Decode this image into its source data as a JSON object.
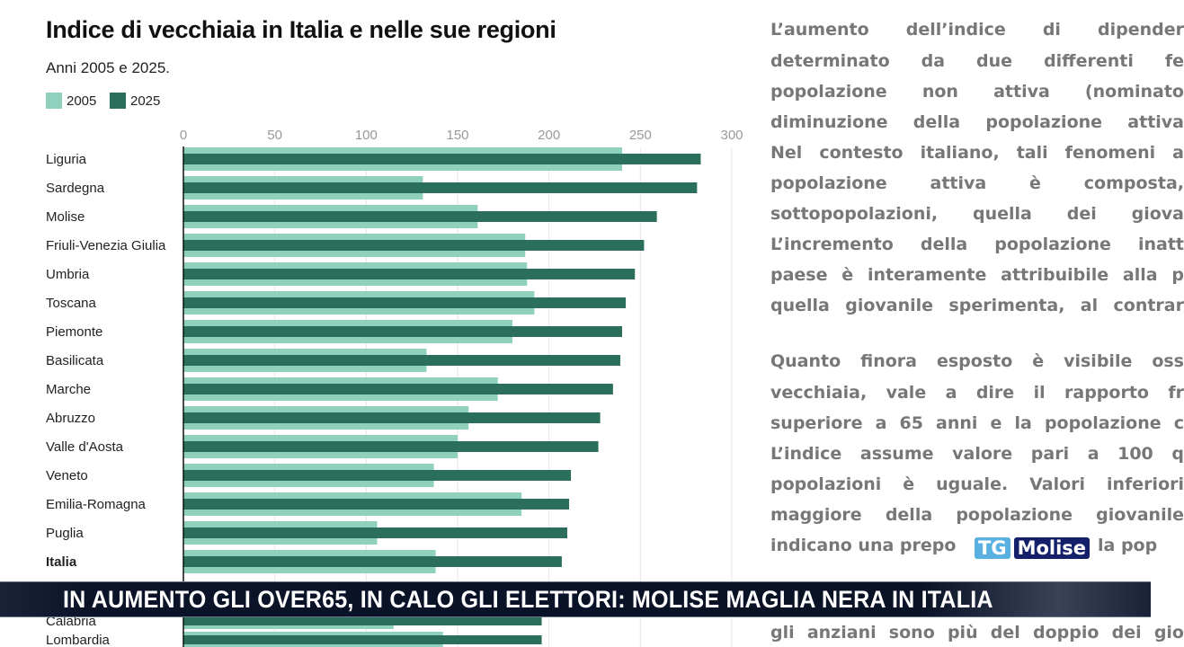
{
  "chart_data": {
    "type": "bar",
    "orientation": "horizontal",
    "title": "Indice di vecchiaia in Italia e nelle sue regioni",
    "subtitle": "Anni 2005 e 2025.",
    "xlabel": "",
    "ylabel": "",
    "xlim": [
      0,
      300
    ],
    "ticks": [
      "0",
      "50",
      "100",
      "150",
      "200",
      "250",
      "300"
    ],
    "grid": true,
    "legend_position": "top-left",
    "categories": [
      "Liguria",
      "Sardegna",
      "Molise",
      "Friuli-Venezia Giulia",
      "Umbria",
      "Toscana",
      "Piemonte",
      "Basilicata",
      "Marche",
      "Abruzzo",
      "Valle d'Aosta",
      "Veneto",
      "Emilia-Romagna",
      "Puglia",
      "Italia",
      "Calabria",
      "Lombardia"
    ],
    "bold_categories": [
      "Italia"
    ],
    "series": [
      {
        "name": "2005",
        "color": "#8fd1bd",
        "values": [
          240,
          131,
          161,
          187,
          188,
          192,
          180,
          133,
          172,
          156,
          150,
          137,
          185,
          106,
          138,
          115,
          142
        ]
      },
      {
        "name": "2025",
        "color": "#2b6e5c",
        "values": [
          283,
          281,
          259,
          252,
          247,
          242,
          240,
          239,
          235,
          228,
          227,
          212,
          211,
          210,
          207,
          196,
          196
        ]
      }
    ]
  },
  "article": {
    "lines": [
      "L’aumento dell’indice di dipender",
      "determinato da due differenti fe",
      "popolazione non attiva (nominato",
      "diminuzione della popolazione attiva",
      "Nel contesto italiano, tali fenomeni a",
      "popolazione attiva è composta,",
      "sottopopolazioni, quella dei giova",
      "L’incremento della popolazione inatt",
      "paese è interamente attribuibile alla p",
      "quella giovanile sperimenta, al contrar",
      "Quanto finora esposto è visibile oss",
      "vecchiaia, vale a dire il rapporto fr",
      "superiore a 65 anni e la popolazione c",
      "L’indice assume valore pari a 100 q",
      "popolazioni è uguale. Valori inferiori",
      "maggiore della popolazione giovanile",
      "indicano una prepo                  la pop",
      "gli anziani sono più del doppio dei gio"
    ]
  },
  "broadcast": {
    "headline": "IN AUMENTO GLI OVER65, IN CALO GLI ELETTORI: MOLISE MAGLIA NERA IN ITALIA",
    "logo_tg": "TG",
    "logo_name": "Molise"
  }
}
